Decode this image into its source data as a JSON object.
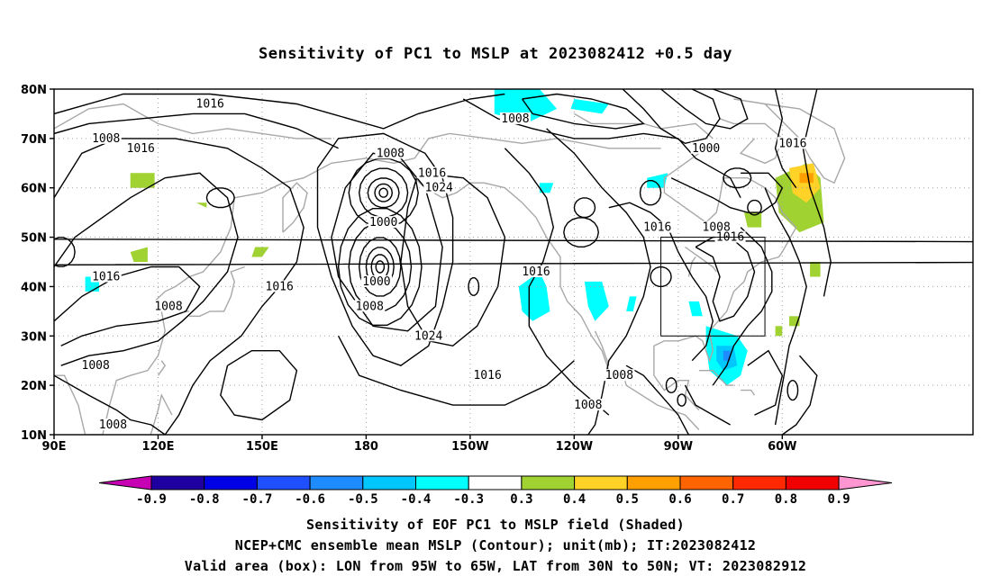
{
  "title": "Sensitivity of PC1 to MSLP at 2023082412 +0.5 day",
  "axes": {
    "lat_labels": [
      "80N",
      "70N",
      "60N",
      "50N",
      "40N",
      "30N",
      "20N",
      "10N"
    ],
    "lon_labels": [
      "90E",
      "120E",
      "150E",
      "180",
      "150W",
      "120W",
      "90W",
      "60W"
    ]
  },
  "contour_labels": [
    {
      "text": "1016",
      "lon": 135,
      "lat": 77
    },
    {
      "text": "1008",
      "lon": 105,
      "lat": 70
    },
    {
      "text": "1016",
      "lon": 115,
      "lat": 68
    },
    {
      "text": "1016",
      "lon": 105,
      "lat": 42
    },
    {
      "text": "1016",
      "lon": 155,
      "lat": 40
    },
    {
      "text": "1008",
      "lon": 123,
      "lat": 36
    },
    {
      "text": "1008",
      "lon": 102,
      "lat": 24
    },
    {
      "text": "1008",
      "lon": 107,
      "lat": 12
    },
    {
      "text": "1008",
      "lon": -173,
      "lat": 67
    },
    {
      "text": "1000",
      "lon": -175,
      "lat": 53
    },
    {
      "text": "1000",
      "lon": -177,
      "lat": 41
    },
    {
      "text": "1008",
      "lon": -179,
      "lat": 36
    },
    {
      "text": "1016",
      "lon": -161,
      "lat": 63
    },
    {
      "text": "1024",
      "lon": -159,
      "lat": 60
    },
    {
      "text": "1024",
      "lon": -162,
      "lat": 30
    },
    {
      "text": "1016",
      "lon": -145,
      "lat": 22
    },
    {
      "text": "1016",
      "lon": -131,
      "lat": 43
    },
    {
      "text": "1008",
      "lon": -137,
      "lat": 74
    },
    {
      "text": "1000",
      "lon": -82,
      "lat": 68
    },
    {
      "text": "1016",
      "lon": -96,
      "lat": 52
    },
    {
      "text": "1008",
      "lon": -79,
      "lat": 52
    },
    {
      "text": "1016",
      "lon": -75,
      "lat": 50
    },
    {
      "text": "1016",
      "lon": -57,
      "lat": 69
    },
    {
      "text": "1008",
      "lon": -107,
      "lat": 22
    },
    {
      "text": "1008",
      "lon": -116,
      "lat": 16
    }
  ],
  "valid_box": {
    "lon_min": -95,
    "lon_max": -65,
    "lat_min": 30,
    "lat_max": 50
  },
  "colorbar": {
    "labels": [
      "-0.9",
      "-0.8",
      "-0.7",
      "-0.6",
      "-0.5",
      "-0.4",
      "-0.3",
      "0.3",
      "0.4",
      "0.5",
      "0.6",
      "0.7",
      "0.8",
      "0.9"
    ],
    "colors": [
      "#1e00a0",
      "#0000e6",
      "#1e50ff",
      "#1e8cff",
      "#00c8ff",
      "#00ffff",
      "#ffffff",
      "#a0d232",
      "#ffd228",
      "#ffa000",
      "#ff6400",
      "#ff2800",
      "#f00000"
    ],
    "low_extension_color": "#c800b4",
    "high_extension_color": "#ff96d2"
  },
  "captions": [
    "Sensitivity of EOF PC1 to MSLP field (Shaded)",
    "NCEP+CMC ensemble mean MSLP (Contour); unit(mb); IT:2023082412",
    "Valid area (box): LON from 95W to 65W, LAT from 30N to 50N; VT: 2023082912"
  ],
  "shading": {
    "cyan_color": "#00ffff",
    "light_blue_color": "#00c8ff",
    "blue_color": "#1e8cff",
    "green_color": "#a0d232",
    "yellow_color": "#ffd228",
    "orange_color": "#ffa000"
  }
}
